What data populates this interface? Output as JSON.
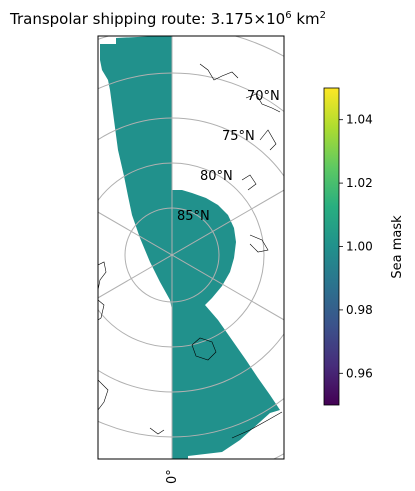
{
  "chart_data": {
    "type": "heatmap",
    "title": "Transpolar shipping route:  3.175×10",
    "title_exponent": "6",
    "title_unit": "km",
    "title_unit_exponent": "2",
    "projection": "north-polar-stereographic",
    "latitude_labels": [
      "70°N",
      "75°N",
      "80°N",
      "85°N"
    ],
    "longitude_labels": [
      "0°"
    ],
    "mask_value": 1.0,
    "mask_color": "#21918c",
    "colorbar": {
      "label": "Sea mask",
      "vmin": 0.95,
      "vmax": 1.05,
      "ticks": [
        "0.96",
        "0.98",
        "1.00",
        "1.02",
        "1.04"
      ],
      "tick_values": [
        0.96,
        0.98,
        1.0,
        1.02,
        1.04
      ],
      "colormap": "viridis"
    },
    "grid": true
  }
}
